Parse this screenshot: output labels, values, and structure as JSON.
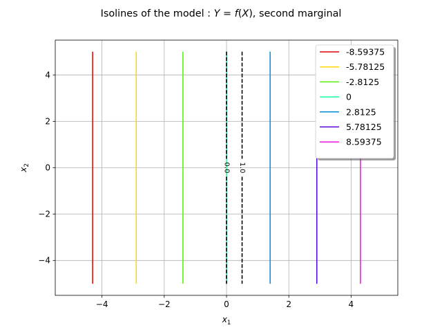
{
  "chart_data": {
    "type": "line",
    "title": "Isolines of the model : Y = f(X), second marginal",
    "xlabel": "x1",
    "ylabel": "x2",
    "xlim": [
      -5.5,
      5.5
    ],
    "ylim": [
      -5.5,
      5.5
    ],
    "xticks": [
      -4,
      -2,
      0,
      2,
      4
    ],
    "yticks": [
      -4,
      -2,
      0,
      2,
      4
    ],
    "xtick_labels": [
      "−4",
      "−2",
      "0",
      "2",
      "4"
    ],
    "ytick_labels": [
      "−4",
      "−2",
      "0",
      "2",
      "4"
    ],
    "grid": true,
    "legend_position": "top-right",
    "series": [
      {
        "name": "-8.59375",
        "color": "#dd0000",
        "x": [
          -4.3,
          -4.3
        ],
        "y": [
          -5,
          5
        ]
      },
      {
        "name": "-5.78125",
        "color": "#ffd700",
        "x": [
          -2.9,
          -2.9
        ],
        "y": [
          -5,
          5
        ]
      },
      {
        "name": "-2.8125",
        "color": "#55ee11",
        "x": [
          -1.4,
          -1.4
        ],
        "y": [
          -5,
          5
        ]
      },
      {
        "name": "0",
        "color": "#11ff99",
        "x": [
          0,
          0
        ],
        "y": [
          -5,
          5
        ]
      },
      {
        "name": "2.8125",
        "color": "#0088dd",
        "x": [
          1.4,
          1.4
        ],
        "y": [
          -5,
          5
        ]
      },
      {
        "name": "5.78125",
        "color": "#5500dd",
        "x": [
          2.9,
          2.9
        ],
        "y": [
          -5,
          5
        ]
      },
      {
        "name": "8.59375",
        "color": "#ee11dd",
        "x": [
          4.3,
          4.3
        ],
        "y": [
          -5,
          5
        ]
      }
    ],
    "threshold_lines": [
      {
        "label": "0.0",
        "color": "#000000",
        "style": "dashed",
        "x": 0,
        "y": [
          -5,
          5
        ]
      },
      {
        "label": "1.0",
        "color": "#000000",
        "style": "dashed",
        "x": 0.5,
        "y": [
          -5,
          5
        ]
      }
    ]
  }
}
